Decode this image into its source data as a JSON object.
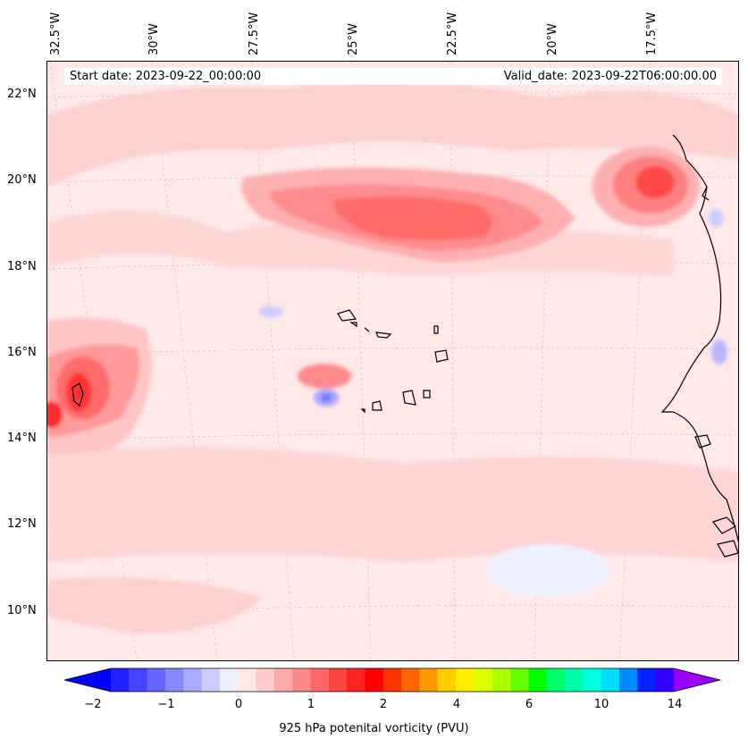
{
  "map": {
    "info": {
      "start_date": "Start date: 2023-09-22_00:00:00",
      "valid_date": "Valid_date: 2023-09-22T06:00:00.00"
    },
    "longitude_labels": [
      "32.5°W",
      "30°W",
      "27.5°W",
      "25°W",
      "22.5°W",
      "20°W",
      "17.5°W"
    ],
    "latitude_labels": [
      "22°N",
      "20°N",
      "18°N",
      "16°N",
      "14°N",
      "12°N",
      "10°N"
    ],
    "colorbar": {
      "label": "925 hPa potenital vorticity (PVU)",
      "tick_labels": [
        "−2",
        "−1",
        "0",
        "1",
        "2",
        "4",
        "6",
        "10",
        "14"
      ],
      "colors": [
        "#0000ff",
        "#2222ff",
        "#4444ff",
        "#6666ff",
        "#8888ff",
        "#aaaaff",
        "#ccccff",
        "#eeeeff",
        "#ffe8e8",
        "#ffcccc",
        "#ffaaaa",
        "#ff8888",
        "#ff6666",
        "#ff4444",
        "#ff2222",
        "#ff0000",
        "#ff3300",
        "#ff6600",
        "#ff9900",
        "#ffcc00",
        "#ffee00",
        "#ddff00",
        "#aaff00",
        "#66ff00",
        "#00ff00",
        "#00ff66",
        "#00ffaa",
        "#00ffdd",
        "#00ddff",
        "#0088ff",
        "#0022ff",
        "#3300ff",
        "#9900ff"
      ]
    }
  }
}
